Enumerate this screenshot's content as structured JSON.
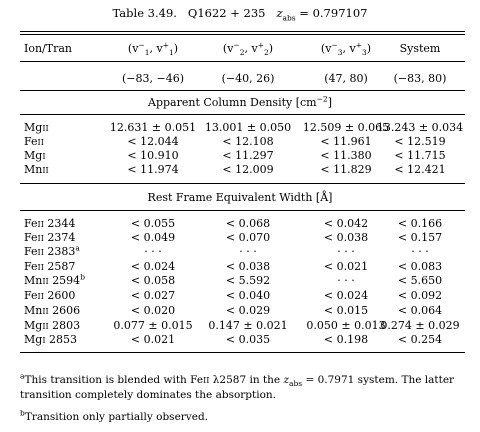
{
  "caption": {
    "table_label": "Table 3.49.",
    "quasar": "Q1622 + 235",
    "redshift_symbol": "z",
    "redshift_subscript": "abs",
    "redshift_value": "= 0.797107"
  },
  "header": {
    "col0": "Ion/Tran",
    "cols": [
      {
        "v1": "(v",
        "s1sub": "1",
        "s1sup": "−",
        "mid": ", v",
        "s2sub": "1",
        "s2sup": "+",
        "end": ")"
      },
      {
        "v1": "(v",
        "s1sub": "2",
        "s1sup": "−",
        "mid": ", v",
        "s2sub": "2",
        "s2sup": "+",
        "end": ")"
      },
      {
        "v1": "(v",
        "s1sub": "3",
        "s1sup": "−",
        "mid": ", v",
        "s2sub": "3",
        "s2sup": "+",
        "end": ")"
      }
    ],
    "col4": "System"
  },
  "ranges": [
    "(−83, −46)",
    "(−40, 26)",
    "(47, 80)",
    "(−83, 80)"
  ],
  "section1_title": "Apparent Column Density [cm",
  "section1_title_sup": "−2",
  "section1_title_end": "]",
  "column_density_rows": [
    {
      "ion": "Mg",
      "ion_roman": "II",
      "v1": "12.631 ± 0.051",
      "v2": "13.001 ± 0.050",
      "v3": "12.509 ± 0.065",
      "sys": "13.243 ± 0.034"
    },
    {
      "ion": "Fe",
      "ion_roman": "II",
      "v1": "< 12.044",
      "v2": "< 12.108",
      "v3": "< 11.961",
      "sys": "< 12.519"
    },
    {
      "ion": "Mg",
      "ion_roman": "I",
      "v1": "< 10.910",
      "v2": "< 11.297",
      "v3": "< 11.380",
      "sys": "< 11.715"
    },
    {
      "ion": "Mn",
      "ion_roman": "II",
      "v1": "< 11.974",
      "v2": "< 12.009",
      "v3": "< 11.829",
      "sys": "< 12.421"
    }
  ],
  "section2_title": "Rest Frame Equivalent Width [Å]",
  "ew_rows": [
    {
      "ion": "Fe",
      "ion_roman": "II",
      "wl": "2344",
      "mark": "",
      "v1": "< 0.055",
      "v2": "< 0.068",
      "v3": "< 0.042",
      "sys": "< 0.166"
    },
    {
      "ion": "Fe",
      "ion_roman": "II",
      "wl": "2374",
      "mark": "",
      "v1": "< 0.049",
      "v2": "< 0.070",
      "v3": "< 0.038",
      "sys": "< 0.157"
    },
    {
      "ion": "Fe",
      "ion_roman": "II",
      "wl": "2383",
      "mark": "a",
      "v1": "· · ·",
      "v2": "· · ·",
      "v3": "· · ·",
      "sys": "· · ·"
    },
    {
      "ion": "Fe",
      "ion_roman": "II",
      "wl": "2587",
      "mark": "",
      "v1": "< 0.024",
      "v2": "< 0.038",
      "v3": "< 0.021",
      "sys": "< 0.083"
    },
    {
      "ion": "Mn",
      "ion_roman": "II",
      "wl": "2594",
      "mark": "b",
      "v1": "< 0.058",
      "v2": "< 5.592",
      "v3": "· · ·",
      "sys": "< 5.650"
    },
    {
      "ion": "Fe",
      "ion_roman": "II",
      "wl": "2600",
      "mark": "",
      "v1": "< 0.027",
      "v2": "< 0.040",
      "v3": "< 0.024",
      "sys": "< 0.092"
    },
    {
      "ion": "Mn",
      "ion_roman": "II",
      "wl": "2606",
      "mark": "",
      "v1": "< 0.020",
      "v2": "< 0.029",
      "v3": "< 0.015",
      "sys": "< 0.064"
    },
    {
      "ion": "Mg",
      "ion_roman": "II",
      "wl": "2803",
      "mark": "",
      "v1": "0.077 ± 0.015",
      "v2": "0.147 ± 0.021",
      "v3": "0.050 ± 0.013",
      "sys": "0.274 ± 0.029"
    },
    {
      "ion": "Mg",
      "ion_roman": "I",
      "wl": "2853",
      "mark": "",
      "v1": "< 0.021",
      "v2": "< 0.035",
      "v3": "< 0.198",
      "sys": "< 0.254"
    }
  ],
  "footnotes": [
    {
      "mark": "a",
      "text_a": "This transition is blended with Fe",
      "roman": "II",
      "text_b": " λ2587 in the ",
      "z": "z",
      "zsub": "abs",
      "text_c": " = 0.7971 system. The latter transition completely dominates the absorption."
    },
    {
      "mark": "b",
      "text": "Transition only partially observed."
    }
  ]
}
